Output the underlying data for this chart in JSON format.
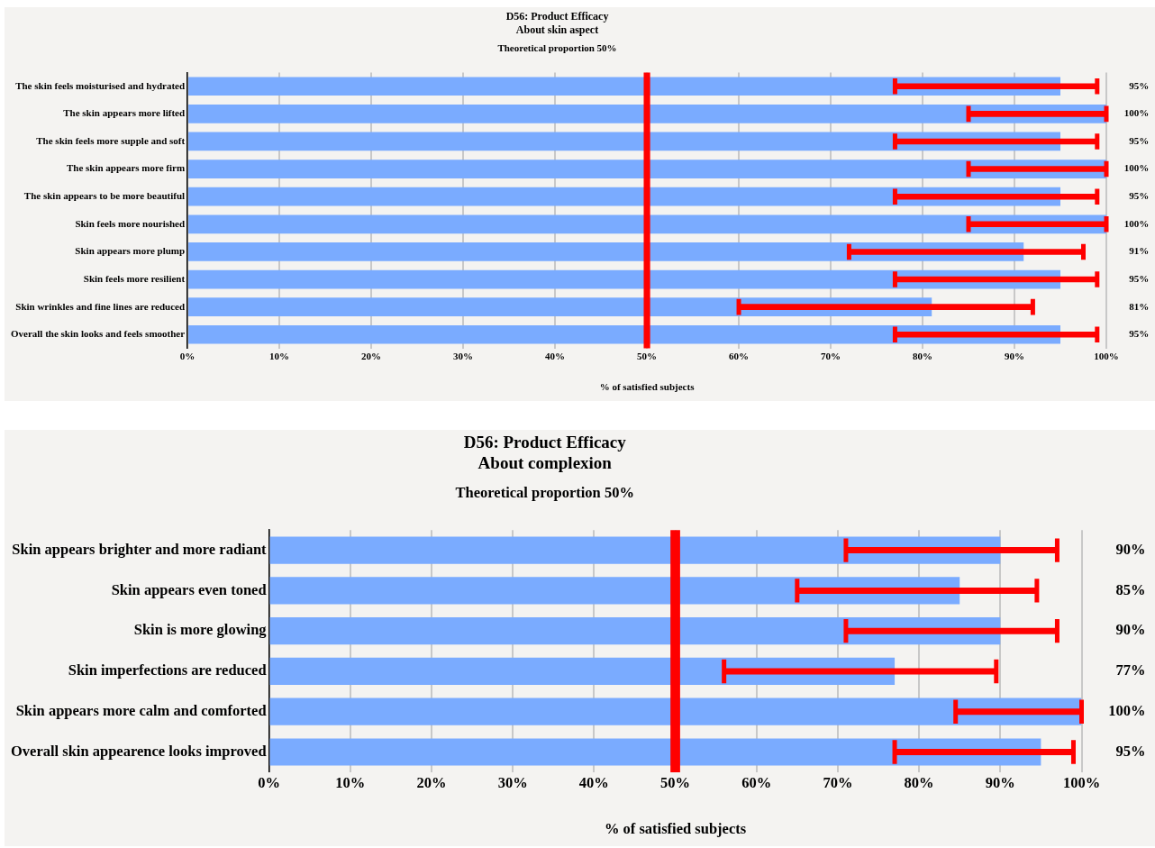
{
  "chart_data": [
    {
      "type": "bar",
      "orientation": "horizontal",
      "title": "D56: Product Efficacy\nAbout skin aspect",
      "subtitle": "Theoretical proportion 50%",
      "xlabel": "% of satisfied subjects",
      "categories": [
        "The skin feels moisturised and hydrated",
        "The skin appears more lifted",
        "The skin feels more supple and soft",
        "The skin appears more firm",
        "The skin appears to be more beautiful",
        "Skin feels more nourished",
        "Skin appears more plump",
        "Skin feels more resilient",
        "Skin wrinkles and fine lines are reduced",
        "Overall the skin looks and feels smoother"
      ],
      "values": [
        95,
        100,
        95,
        100,
        95,
        100,
        91,
        95,
        81,
        95
      ],
      "value_labels": [
        "95%",
        "100%",
        "95%",
        "100%",
        "95%",
        "100%",
        "91%",
        "95%",
        "81%",
        "95%"
      ],
      "errors": [
        [
          77,
          99
        ],
        [
          85,
          100
        ],
        [
          77,
          99
        ],
        [
          85,
          100
        ],
        [
          77,
          99
        ],
        [
          85,
          100
        ],
        [
          72,
          97.5
        ],
        [
          77,
          99
        ],
        [
          60,
          92
        ],
        [
          77,
          99
        ]
      ],
      "color": "#7aabff",
      "xlim": [
        0,
        100
      ],
      "xticks": [
        {
          "value": 0,
          "label": "0%"
        },
        {
          "value": 10,
          "label": "10%"
        },
        {
          "value": 20,
          "label": "20%"
        },
        {
          "value": 30,
          "label": "30%"
        },
        {
          "value": 40,
          "label": "40%"
        },
        {
          "value": 50,
          "label": "50%"
        },
        {
          "value": 60,
          "label": "60%"
        },
        {
          "value": 70,
          "label": "70%"
        },
        {
          "value": 80,
          "label": "80%"
        },
        {
          "value": 90,
          "label": "90%"
        },
        {
          "value": 100,
          "label": "100%"
        }
      ],
      "ref_lines": [
        {
          "axis": "x",
          "value": 50,
          "color": "#ff0000"
        }
      ],
      "grid": "x",
      "legend": false
    },
    {
      "type": "bar",
      "orientation": "horizontal",
      "title": "D56: Product Efficacy\nAbout complexion",
      "subtitle": "Theoretical proportion 50%",
      "xlabel": "% of satisfied subjects",
      "categories": [
        "Skin appears brighter and more radiant",
        "Skin appears even toned",
        "Skin is more glowing",
        "Skin imperfections are reduced",
        "Skin appears more calm and comforted",
        "Overall skin appearence looks improved"
      ],
      "values": [
        90,
        85,
        90,
        77,
        100,
        95
      ],
      "value_labels": [
        "90%",
        "85%",
        "90%",
        "77%",
        "100%",
        "95%"
      ],
      "errors": [
        [
          71,
          97
        ],
        [
          65,
          94.5
        ],
        [
          71,
          97
        ],
        [
          56,
          89.5
        ],
        [
          84.5,
          100
        ],
        [
          77,
          99
        ]
      ],
      "color": "#7aabff",
      "xlim": [
        0,
        100
      ],
      "xticks": [
        {
          "value": 0,
          "label": "0%"
        },
        {
          "value": 10,
          "label": "10%"
        },
        {
          "value": 20,
          "label": "20%"
        },
        {
          "value": 30,
          "label": "30%"
        },
        {
          "value": 40,
          "label": "40%"
        },
        {
          "value": 50,
          "label": "50%"
        },
        {
          "value": 60,
          "label": "60%"
        },
        {
          "value": 70,
          "label": "70%"
        },
        {
          "value": 80,
          "label": "80%"
        },
        {
          "value": 90,
          "label": "90%"
        },
        {
          "value": 100,
          "label": "100%"
        }
      ],
      "ref_lines": [
        {
          "axis": "x",
          "value": 50,
          "color": "#ff0000"
        }
      ],
      "grid": "x",
      "legend": false
    }
  ]
}
